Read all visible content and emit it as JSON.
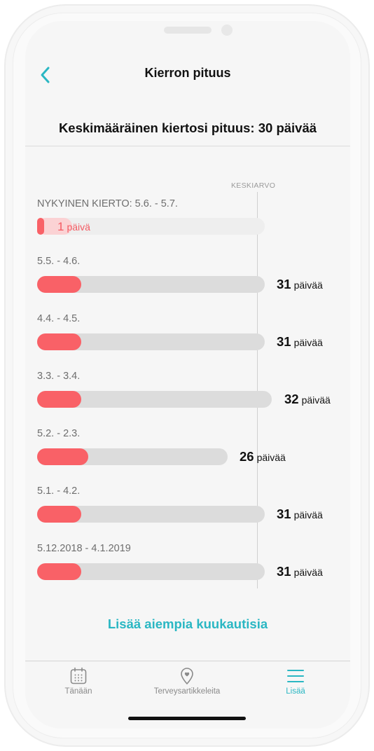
{
  "header": {
    "title": "Kierron pituus",
    "back_icon": "chevron-left-icon"
  },
  "summary": {
    "average_text": "Keskimääräinen kiertosi pituus: 30 päivää"
  },
  "chart": {
    "average_label": "KESKIARVO",
    "average_days": 30,
    "current": {
      "label": "NYKYINEN KIERTO: 5.6. - 5.7.",
      "days": "1",
      "unit": "päivä"
    },
    "cycles": [
      {
        "label": "5.5. - 4.6.",
        "days": "31",
        "unit": "päivää"
      },
      {
        "label": "4.4. - 4.5.",
        "days": "31",
        "unit": "päivää"
      },
      {
        "label": "3.3. - 3.4.",
        "days": "32",
        "unit": "päivää"
      },
      {
        "label": "5.2. - 2.3.",
        "days": "26",
        "unit": "päivää"
      },
      {
        "label": "5.1. - 4.2.",
        "days": "31",
        "unit": "päivää"
      },
      {
        "label": "5.12.2018 - 4.1.2019",
        "days": "31",
        "unit": "päivää"
      }
    ]
  },
  "more_link": "Lisää aiempia kuukautisia",
  "tabs": [
    {
      "label": "Tänään",
      "icon": "calendar-icon",
      "active": false
    },
    {
      "label": "Terveysartikkeleita",
      "icon": "map-pin-heart-icon",
      "active": false
    },
    {
      "label": "Lisää",
      "icon": "menu-icon",
      "active": true
    }
  ],
  "colors": {
    "accent": "#2ab7c3",
    "bar_fill": "#f96167",
    "track": "#dcdcdc"
  }
}
